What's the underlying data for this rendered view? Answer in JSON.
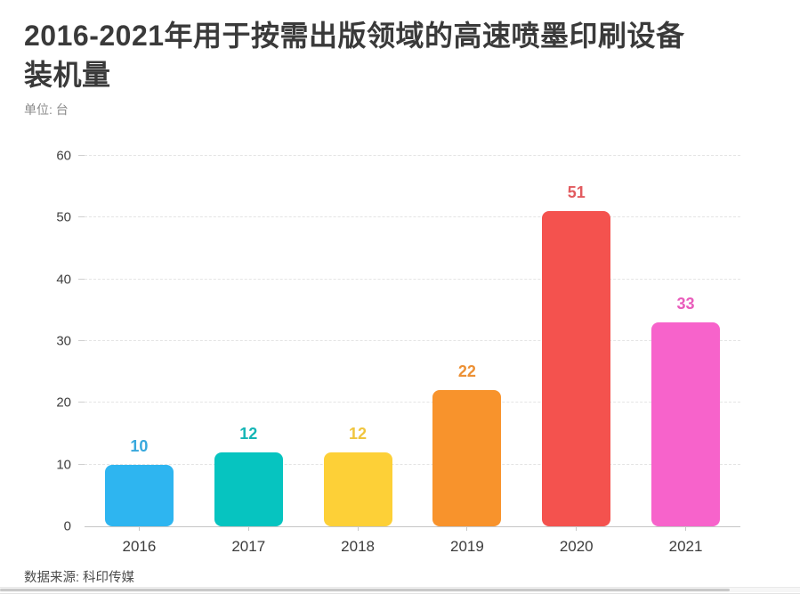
{
  "header": {
    "title_line1": "2016-2021年用于按需出版领域的高速喷墨印刷设备",
    "title_line2": "装机量",
    "unit_label": "单位: 台"
  },
  "footer": {
    "source_label": "数据来源: 科印传媒"
  },
  "chart_data": {
    "type": "bar",
    "title": "2016-2021年用于按需出版领域的高速喷墨印刷设备装机量",
    "unit": "台",
    "categories": [
      "2016",
      "2017",
      "2018",
      "2019",
      "2020",
      "2021"
    ],
    "values": [
      10,
      12,
      12,
      22,
      51,
      33
    ],
    "data_labels": [
      "10",
      "12",
      "12",
      "22",
      "51",
      "33"
    ],
    "bar_colors": [
      "#2eb5f0",
      "#06c4c0",
      "#fdd037",
      "#f8932c",
      "#f4524e",
      "#f763cb"
    ],
    "label_colors": [
      "#38a8dd",
      "#14b5b5",
      "#f0c53e",
      "#ec9034",
      "#e25b5f",
      "#e95cbb"
    ],
    "xlabel": "",
    "ylabel": "",
    "ylim": [
      0,
      60
    ],
    "y_ticks": [
      0,
      10,
      20,
      30,
      40,
      50,
      60
    ],
    "grid": "horizontal-dashed",
    "legend": "none",
    "axis_color": "#c6c6c6"
  }
}
